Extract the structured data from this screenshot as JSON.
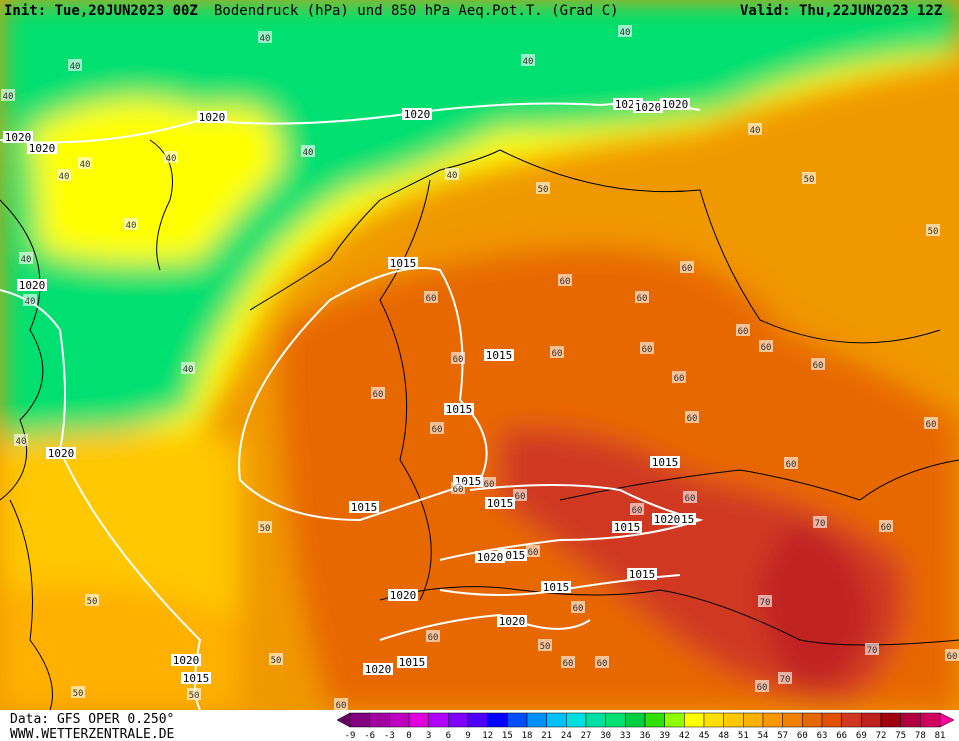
{
  "header": {
    "init": "Init: Tue,20JUN2023 00Z",
    "title": "Bodendruck (hPa) und 850 hPa Aeq.Pot.T. (Grad C)",
    "valid": "Valid: Thu,22JUN2023 12Z"
  },
  "footer": {
    "data_source": "Data: GFS OPER 0.250°",
    "website": "WWW.WETTERZENTRALE.DE"
  },
  "colorbar": {
    "ticks": [
      -9,
      -6,
      -3,
      0,
      3,
      6,
      9,
      12,
      15,
      18,
      21,
      24,
      27,
      30,
      33,
      36,
      39,
      42,
      45,
      48,
      51,
      54,
      57,
      60,
      63,
      66,
      69,
      72,
      75,
      78,
      81
    ],
    "colors": [
      "#6a006a",
      "#800080",
      "#a000a0",
      "#c000c0",
      "#e000e0",
      "#b000ff",
      "#8000ff",
      "#5000ff",
      "#0000ff",
      "#0050ff",
      "#0090ff",
      "#00c0ff",
      "#00e0e0",
      "#00e0a0",
      "#00e070",
      "#00d040",
      "#30e000",
      "#90ff00",
      "#ffff00",
      "#ffe000",
      "#ffc800",
      "#ffb000",
      "#ff9800",
      "#f08000",
      "#e86800",
      "#e05000",
      "#d03820",
      "#c02020",
      "#a00010",
      "#b00040",
      "#d00060",
      "#ff00a0"
    ]
  },
  "pressure_labels": [
    1020,
    1020,
    1020,
    1020,
    1020,
    1020,
    1020,
    1015,
    1015,
    1015,
    1015,
    1015,
    1015,
    1015,
    1015,
    1015,
    1015,
    1015,
    1015,
    1020,
    1020,
    1015,
    1020,
    1020,
    1015,
    1020,
    1020,
    1020,
    1020
  ],
  "theta_labels": [
    40,
    40,
    40,
    40,
    40,
    40,
    40,
    40,
    40,
    40,
    40,
    40,
    50,
    50,
    50,
    40,
    40,
    40,
    40,
    60,
    60,
    60,
    60,
    60,
    60,
    60,
    60,
    60,
    60,
    60,
    60,
    60,
    60,
    60,
    60,
    60,
    60,
    60,
    60,
    60,
    70,
    60,
    50,
    60,
    50,
    70,
    60,
    60,
    50,
    70,
    60,
    60,
    50,
    70,
    60,
    50,
    50,
    60,
    60
  ]
}
